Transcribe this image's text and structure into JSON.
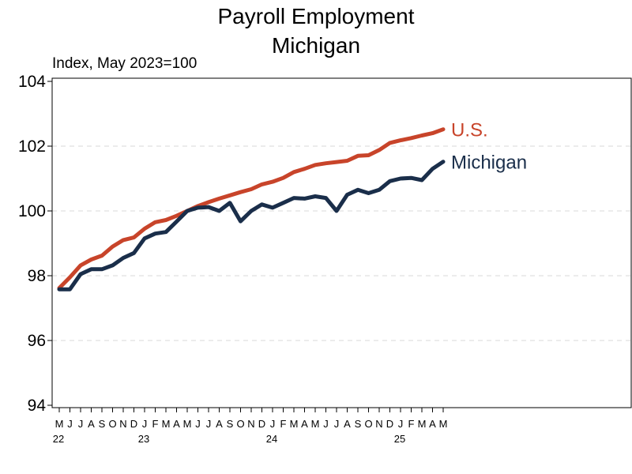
{
  "chart_data": {
    "type": "line",
    "title": "Payroll Employment",
    "subtitle": "Michigan",
    "ylabel": "Index, May 2023=100",
    "xlabel": "",
    "ylim": [
      94,
      104
    ],
    "yticks": [
      94,
      96,
      98,
      100,
      102,
      104
    ],
    "grid": true,
    "x_month_labels": [
      "M",
      "J",
      "J",
      "A",
      "S",
      "O",
      "N",
      "D",
      "J",
      "F",
      "M",
      "A",
      "M",
      "J",
      "J",
      "A",
      "S",
      "O",
      "N",
      "D",
      "J",
      "F",
      "M",
      "A",
      "M",
      "J",
      "J",
      "A",
      "S",
      "O",
      "N",
      "D",
      "J",
      "F",
      "M",
      "A",
      "M"
    ],
    "x_year_labels": [
      {
        "label": "22",
        "index": 0
      },
      {
        "label": "23",
        "index": 8
      },
      {
        "label": "24",
        "index": 20
      },
      {
        "label": "25",
        "index": 32
      }
    ],
    "series": [
      {
        "name": "U.S.",
        "color": "#c8442a",
        "values": [
          97.62,
          97.95,
          98.32,
          98.5,
          98.62,
          98.9,
          99.1,
          99.18,
          99.45,
          99.65,
          99.72,
          99.85,
          100.0,
          100.15,
          100.27,
          100.38,
          100.48,
          100.58,
          100.67,
          100.82,
          100.9,
          101.02,
          101.2,
          101.3,
          101.42,
          101.47,
          101.51,
          101.55,
          101.7,
          101.72,
          101.88,
          102.1,
          102.18,
          102.25,
          102.33,
          102.4,
          102.52
        ]
      },
      {
        "name": "Michigan",
        "color": "#1a2e4a",
        "values": [
          97.58,
          97.58,
          98.05,
          98.2,
          98.2,
          98.32,
          98.55,
          98.7,
          99.15,
          99.3,
          99.35,
          99.67,
          100.0,
          100.1,
          100.12,
          100.0,
          100.25,
          99.68,
          100.0,
          100.2,
          100.1,
          100.25,
          100.4,
          100.38,
          100.45,
          100.4,
          100.0,
          100.5,
          100.65,
          100.55,
          100.65,
          100.92,
          101.0,
          101.02,
          100.95,
          101.3,
          101.52
        ]
      }
    ]
  }
}
